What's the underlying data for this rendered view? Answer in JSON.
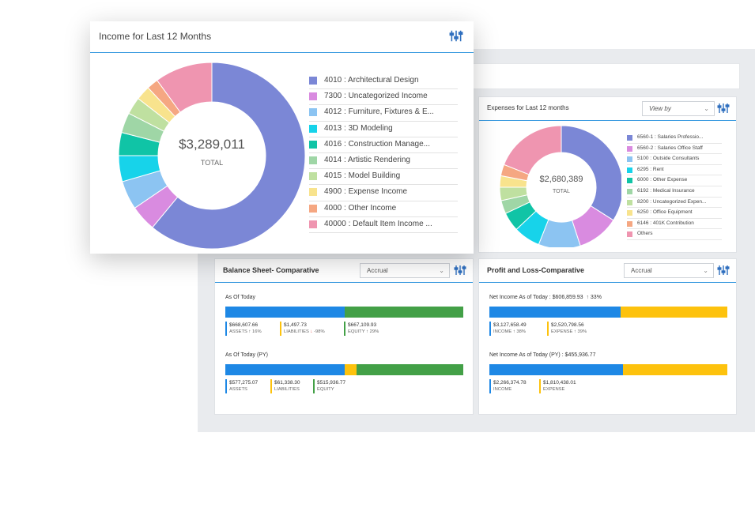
{
  "colors": {
    "blue": "#1e88e5",
    "green": "#43a047",
    "yellow": "#fdc20d",
    "accent": "#3b9be0"
  },
  "income": {
    "title": "Income for Last 12 Months",
    "total_value": "$3,289,011",
    "total_label": "TOTAL",
    "legend": [
      {
        "label": "4010 : Architectural Design",
        "color": "#7b87d6"
      },
      {
        "label": "7300 : Uncategorized Income",
        "color": "#d98be0"
      },
      {
        "label": "4012 : Furniture, Fixtures & E...",
        "color": "#8cc4f2"
      },
      {
        "label": "4013 : 3D Modeling",
        "color": "#17d3ea"
      },
      {
        "label": "4016 : Construction Manage...",
        "color": "#10c4a6"
      },
      {
        "label": "4014 : Artistic Rendering",
        "color": "#9fd6a6"
      },
      {
        "label": "4015 : Model Building",
        "color": "#bfe0a0"
      },
      {
        "label": "4900 : Expense Income",
        "color": "#f8e38d"
      },
      {
        "label": "4000 : Other Income",
        "color": "#f5a782"
      },
      {
        "label": "40000 : Default Item Income ...",
        "color": "#ef95b0"
      }
    ]
  },
  "expenses": {
    "title": "Expenses for Last 12 months",
    "view_by": "View by",
    "total_value": "$2,680,389",
    "total_label": "TOTAL",
    "legend": [
      {
        "label": "6560-1 : Salaries Professio...",
        "color": "#7b87d6"
      },
      {
        "label": "6560-2 : Salaries Office Staff",
        "color": "#d98be0"
      },
      {
        "label": "5100 : Outside Consultants",
        "color": "#8cc4f2"
      },
      {
        "label": "6295 : Rent",
        "color": "#17d3ea"
      },
      {
        "label": "6000 : Other Expense",
        "color": "#10c4a6"
      },
      {
        "label": "6192 : Medical Insurance",
        "color": "#9fd6a6"
      },
      {
        "label": "8200 : Uncategorized Expen...",
        "color": "#bfe0a0"
      },
      {
        "label": "6250 : Office Equipment",
        "color": "#f8e38d"
      },
      {
        "label": "6146 : 401K Contribution",
        "color": "#f5a782"
      },
      {
        "label": "Others",
        "color": "#ef95b0"
      }
    ]
  },
  "balance": {
    "title": "Balance Sheet- Comparative",
    "basis": "Accrual",
    "today_label": "As Of Today",
    "today_bar": [
      0.5,
      0.0,
      0.5
    ],
    "today": {
      "assets_value": "$668,607.66",
      "assets_label": "ASSETS",
      "assets_change": "16%",
      "liabilities_value": "$1,497.73",
      "liabilities_label": "LIABILITIES",
      "liabilities_change": "-98%",
      "equity_value": "$667,109.93",
      "equity_label": "EQUITY",
      "equity_change": "29%"
    },
    "py_label": "As Of Today (PY)",
    "py_bar": [
      0.5,
      0.05,
      0.45
    ],
    "py": {
      "assets_value": "$577,275.07",
      "assets_label": "ASSETS",
      "liabilities_value": "$61,338.30",
      "liabilities_label": "LIABILITIES",
      "equity_value": "$515,936.77",
      "equity_label": "EQUITY"
    }
  },
  "pl": {
    "title": "Profit and Loss-Comparative",
    "basis": "Accrual",
    "today_label": "Net Income As of Today : $606,859.93",
    "today_change": "33%",
    "today_bar": [
      0.55,
      0.45
    ],
    "today": {
      "income_value": "$3,127,658.49",
      "income_label": "INCOME",
      "income_change": "38%",
      "expense_value": "$2,520,798.56",
      "expense_label": "EXPENSE",
      "expense_change": "39%"
    },
    "py_label": "Net Income As of Today (PY) : $455,936.77",
    "py_bar": [
      0.56,
      0.44
    ],
    "py": {
      "income_value": "$2,266,374.78",
      "income_label": "INCOME",
      "expense_value": "$1,810,438.01",
      "expense_label": "EXPENSE"
    }
  }
}
